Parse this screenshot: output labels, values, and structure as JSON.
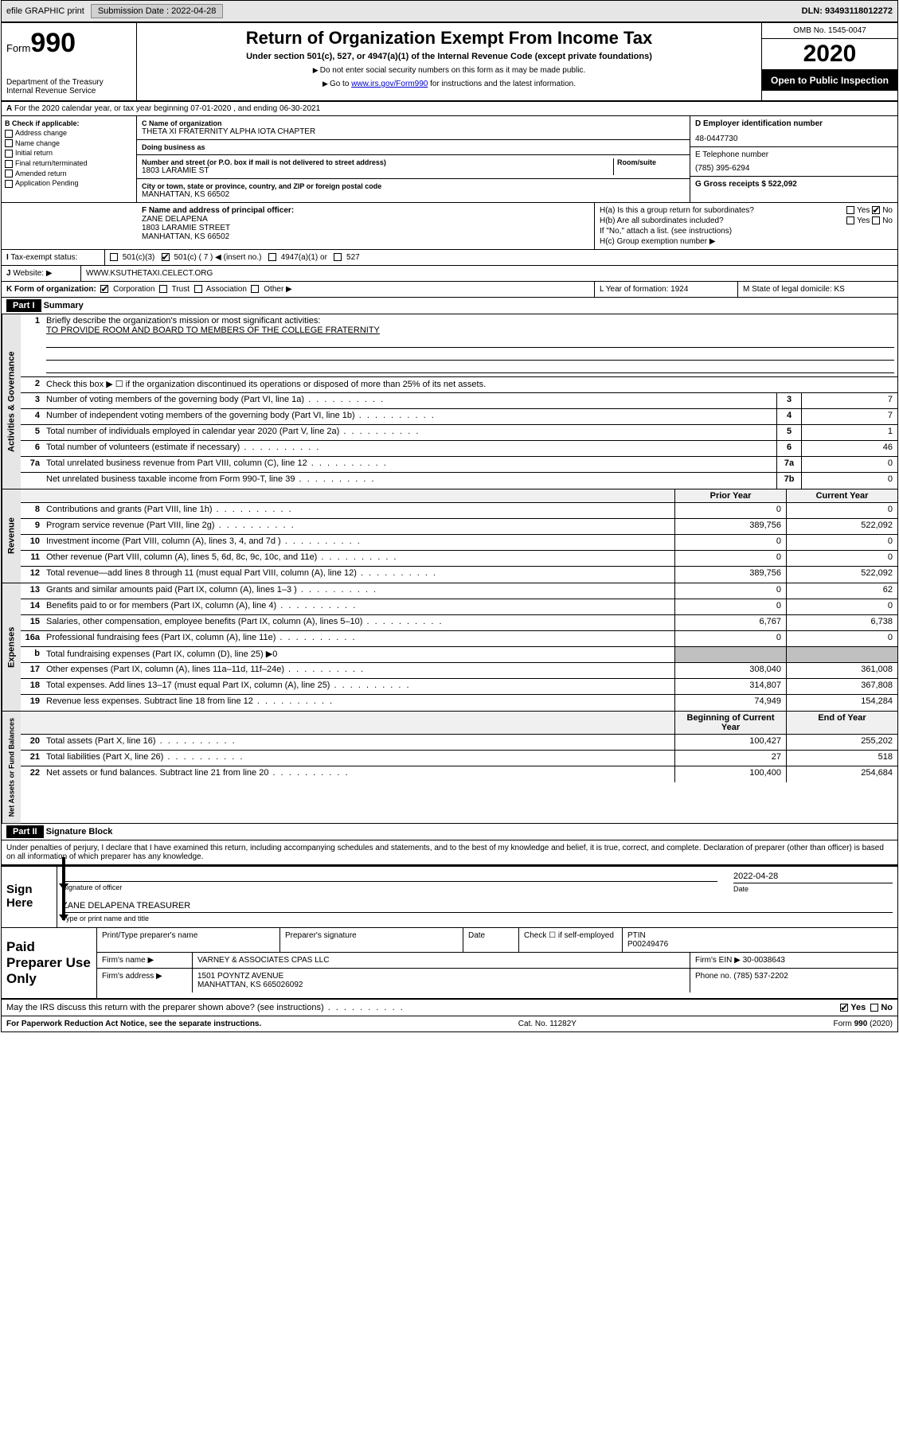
{
  "topbar": {
    "efile": "efile GRAPHIC print",
    "submission_label": "Submission Date : 2022-04-28",
    "dln": "DLN: 93493118012272"
  },
  "header": {
    "form_label": "Form",
    "form_number": "990",
    "dept": "Department of the Treasury\nInternal Revenue Service",
    "title": "Return of Organization Exempt From Income Tax",
    "subtitle": "Under section 501(c), 527, or 4947(a)(1) of the Internal Revenue Code (except private foundations)",
    "instr1": "Do not enter social security numbers on this form as it may be made public.",
    "instr2_pre": "Go to ",
    "instr2_link": "www.irs.gov/Form990",
    "instr2_post": " for instructions and the latest information.",
    "omb": "OMB No. 1545-0047",
    "year": "2020",
    "inspect": "Open to Public Inspection"
  },
  "section_a": "For the 2020 calendar year, or tax year beginning 07-01-2020   , and ending 06-30-2021",
  "section_b": {
    "label": "B Check if applicable:",
    "opts": [
      "Address change",
      "Name change",
      "Initial return",
      "Final return/terminated",
      "Amended return",
      "Application Pending"
    ]
  },
  "section_c": {
    "name_label": "C Name of organization",
    "name": "THETA XI FRATERNITY ALPHA IOTA CHAPTER",
    "dba_label": "Doing business as",
    "addr_label": "Number and street (or P.O. box if mail is not delivered to street address)",
    "room_label": "Room/suite",
    "addr": "1803 LARAMIE ST",
    "city_label": "City or town, state or province, country, and ZIP or foreign postal code",
    "city": "MANHATTAN, KS  66502"
  },
  "section_d": {
    "ein_label": "D Employer identification number",
    "ein": "48-0447730",
    "phone_label": "E Telephone number",
    "phone": "(785) 395-6294",
    "gross_label": "G Gross receipts $ 522,092"
  },
  "section_f": {
    "label": "F  Name and address of principal officer:",
    "name": "ZANE DELAPENA",
    "addr1": "1803 LARAMIE STREET",
    "addr2": "MANHATTAN, KS  66502"
  },
  "section_h": {
    "ha": "H(a)  Is this a group return for subordinates?",
    "hb": "H(b)  Are all subordinates included?",
    "hb_note": "If \"No,\" attach a list. (see instructions)",
    "hc": "H(c)  Group exemption number ▶",
    "yes": "Yes",
    "no": "No"
  },
  "section_i": {
    "label": "Tax-exempt status:",
    "opts": [
      "501(c)(3)",
      "501(c) ( 7 ) ◀ (insert no.)",
      "4947(a)(1) or",
      "527"
    ]
  },
  "section_j": {
    "label": "Website: ▶",
    "val": "WWW.KSUTHETAXI.CELECT.ORG"
  },
  "section_k": {
    "label": "K Form of organization:",
    "opts": [
      "Corporation",
      "Trust",
      "Association",
      "Other ▶"
    ],
    "l": "L Year of formation: 1924",
    "m": "M State of legal domicile: KS"
  },
  "part1": {
    "hdr": "Part I",
    "title": "Summary",
    "q1": "Briefly describe the organization's mission or most significant activities:",
    "q1_val": "TO PROVIDE ROOM AND BOARD TO MEMBERS OF THE COLLEGE FRATERNITY",
    "q2": "Check this box ▶ ☐  if the organization discontinued its operations or disposed of more than 25% of its net assets.",
    "lines_gov": [
      {
        "n": "3",
        "d": "Number of voting members of the governing body (Part VI, line 1a)",
        "c": "3",
        "v": "7"
      },
      {
        "n": "4",
        "d": "Number of independent voting members of the governing body (Part VI, line 1b)",
        "c": "4",
        "v": "7"
      },
      {
        "n": "5",
        "d": "Total number of individuals employed in calendar year 2020 (Part V, line 2a)",
        "c": "5",
        "v": "1"
      },
      {
        "n": "6",
        "d": "Total number of volunteers (estimate if necessary)",
        "c": "6",
        "v": "46"
      },
      {
        "n": "7a",
        "d": "Total unrelated business revenue from Part VIII, column (C), line 12",
        "c": "7a",
        "v": "0"
      },
      {
        "n": "",
        "d": "Net unrelated business taxable income from Form 990-T, line 39",
        "c": "7b",
        "v": "0"
      }
    ],
    "col_prior": "Prior Year",
    "col_current": "Current Year",
    "lines_rev": [
      {
        "n": "8",
        "d": "Contributions and grants (Part VIII, line 1h)",
        "p": "0",
        "c": "0"
      },
      {
        "n": "9",
        "d": "Program service revenue (Part VIII, line 2g)",
        "p": "389,756",
        "c": "522,092"
      },
      {
        "n": "10",
        "d": "Investment income (Part VIII, column (A), lines 3, 4, and 7d )",
        "p": "0",
        "c": "0"
      },
      {
        "n": "11",
        "d": "Other revenue (Part VIII, column (A), lines 5, 6d, 8c, 9c, 10c, and 11e)",
        "p": "0",
        "c": "0"
      },
      {
        "n": "12",
        "d": "Total revenue—add lines 8 through 11 (must equal Part VIII, column (A), line 12)",
        "p": "389,756",
        "c": "522,092"
      }
    ],
    "lines_exp": [
      {
        "n": "13",
        "d": "Grants and similar amounts paid (Part IX, column (A), lines 1–3 )",
        "p": "0",
        "c": "62"
      },
      {
        "n": "14",
        "d": "Benefits paid to or for members (Part IX, column (A), line 4)",
        "p": "0",
        "c": "0"
      },
      {
        "n": "15",
        "d": "Salaries, other compensation, employee benefits (Part IX, column (A), lines 5–10)",
        "p": "6,767",
        "c": "6,738"
      },
      {
        "n": "16a",
        "d": "Professional fundraising fees (Part IX, column (A), line 11e)",
        "p": "0",
        "c": "0"
      },
      {
        "n": "b",
        "d": "Total fundraising expenses (Part IX, column (D), line 25) ▶0",
        "p": "",
        "c": "",
        "shaded": true
      },
      {
        "n": "17",
        "d": "Other expenses (Part IX, column (A), lines 11a–11d, 11f–24e)",
        "p": "308,040",
        "c": "361,008"
      },
      {
        "n": "18",
        "d": "Total expenses. Add lines 13–17 (must equal Part IX, column (A), line 25)",
        "p": "314,807",
        "c": "367,808"
      },
      {
        "n": "19",
        "d": "Revenue less expenses. Subtract line 18 from line 12",
        "p": "74,949",
        "c": "154,284"
      }
    ],
    "col_begin": "Beginning of Current Year",
    "col_end": "End of Year",
    "lines_net": [
      {
        "n": "20",
        "d": "Total assets (Part X, line 16)",
        "p": "100,427",
        "c": "255,202"
      },
      {
        "n": "21",
        "d": "Total liabilities (Part X, line 26)",
        "p": "27",
        "c": "518"
      },
      {
        "n": "22",
        "d": "Net assets or fund balances. Subtract line 21 from line 20",
        "p": "100,400",
        "c": "254,684"
      }
    ],
    "vert_gov": "Activities & Governance",
    "vert_rev": "Revenue",
    "vert_exp": "Expenses",
    "vert_net": "Net Assets or Fund Balances"
  },
  "part2": {
    "hdr": "Part II",
    "title": "Signature Block",
    "decl": "Under penalties of perjury, I declare that I have examined this return, including accompanying schedules and statements, and to the best of my knowledge and belief, it is true, correct, and complete. Declaration of preparer (other than officer) is based on all information of which preparer has any knowledge."
  },
  "sign": {
    "label": "Sign Here",
    "sig_cap": "Signature of officer",
    "date_cap": "Date",
    "date": "2022-04-28",
    "name": "ZANE DELAPENA  TREASURER",
    "name_cap": "Type or print name and title"
  },
  "prep": {
    "label": "Paid Preparer Use Only",
    "print_label": "Print/Type preparer's name",
    "sig_label": "Preparer's signature",
    "date_label": "Date",
    "check_label": "Check ☐ if self-employed",
    "ptin_label": "PTIN",
    "ptin": "P00249476",
    "firm_label": "Firm's name    ▶",
    "firm": "VARNEY & ASSOCIATES CPAS LLC",
    "ein_label": "Firm's EIN ▶",
    "ein": "30-0038643",
    "addr_label": "Firm's address ▶",
    "addr1": "1501 POYNTZ AVENUE",
    "addr2": "MANHATTAN, KS  665026092",
    "phone_label": "Phone no.",
    "phone": "(785) 537-2202"
  },
  "discuss": "May the IRS discuss this return with the preparer shown above? (see instructions)",
  "footer": {
    "left": "For Paperwork Reduction Act Notice, see the separate instructions.",
    "mid": "Cat. No. 11282Y",
    "right": "Form 990 (2020)"
  }
}
